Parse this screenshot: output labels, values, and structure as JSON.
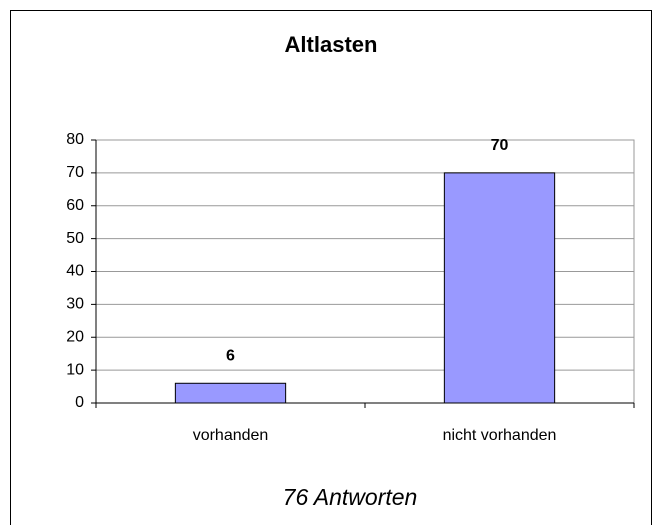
{
  "chart_data": {
    "type": "bar",
    "title": "Altlasten",
    "categories": [
      "vorhanden",
      "nicht vorhanden"
    ],
    "values": [
      6,
      70
    ],
    "color": "#9999ff",
    "ylim": [
      0,
      80
    ],
    "yticks": [
      0,
      10,
      20,
      30,
      40,
      50,
      60,
      70,
      80
    ],
    "grid": true,
    "note": "76 Antworten"
  }
}
